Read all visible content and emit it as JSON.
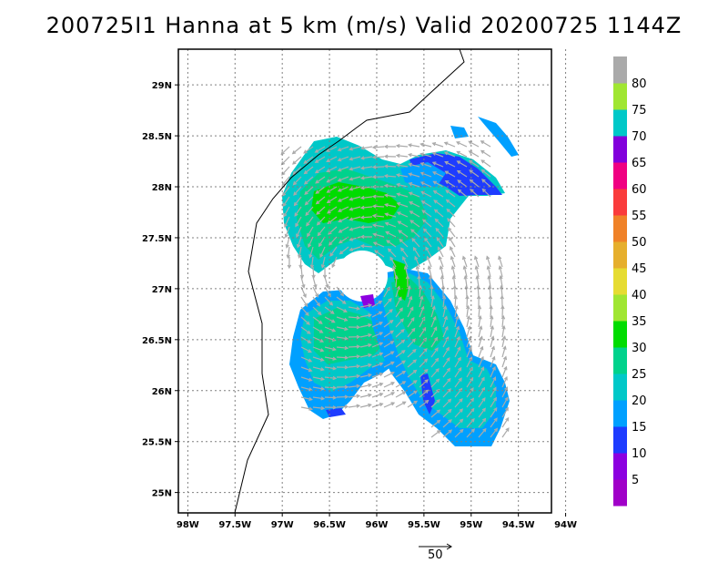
{
  "title": "200725I1 Hanna at 5 km (m/s) Valid 20200725 1144Z",
  "chart_data": {
    "type": "heatmap",
    "title": "200725I1 Hanna at 5 km (m/s) Valid 20200725 1144Z",
    "x_ticks": [
      "98W",
      "97.5W",
      "97W",
      "96.5W",
      "96W",
      "95.5W",
      "95W",
      "94.5W",
      "94W"
    ],
    "y_ticks": [
      "25N",
      "25.5N",
      "26N",
      "26.5N",
      "27N",
      "27.5N",
      "28N",
      "28.5N",
      "29N"
    ],
    "lon_range": [
      -98.1,
      -94.15
    ],
    "lat_range": [
      24.8,
      29.35
    ],
    "grid": true,
    "colorbar": {
      "labels": [
        "5",
        "10",
        "15",
        "20",
        "25",
        "30",
        "35",
        "40",
        "45",
        "50",
        "55",
        "60",
        "65",
        "70",
        "75",
        "80"
      ],
      "colors": [
        "#a000c8",
        "#8c00e0",
        "#1e3cff",
        "#00a0ff",
        "#00c8c8",
        "#00d28c",
        "#00dc00",
        "#a0e632",
        "#e6dc32",
        "#e6af2d",
        "#f08228",
        "#fa3c3c",
        "#f00082",
        "#8200dc",
        "#00c8c8",
        "#a0e632",
        "#aaaaaa"
      ]
    },
    "wind_regions_color_legend": "wind speed shading",
    "reference_vector_label": "50"
  },
  "icons": {
    "vector": "wind-vector-arrow-icon"
  }
}
